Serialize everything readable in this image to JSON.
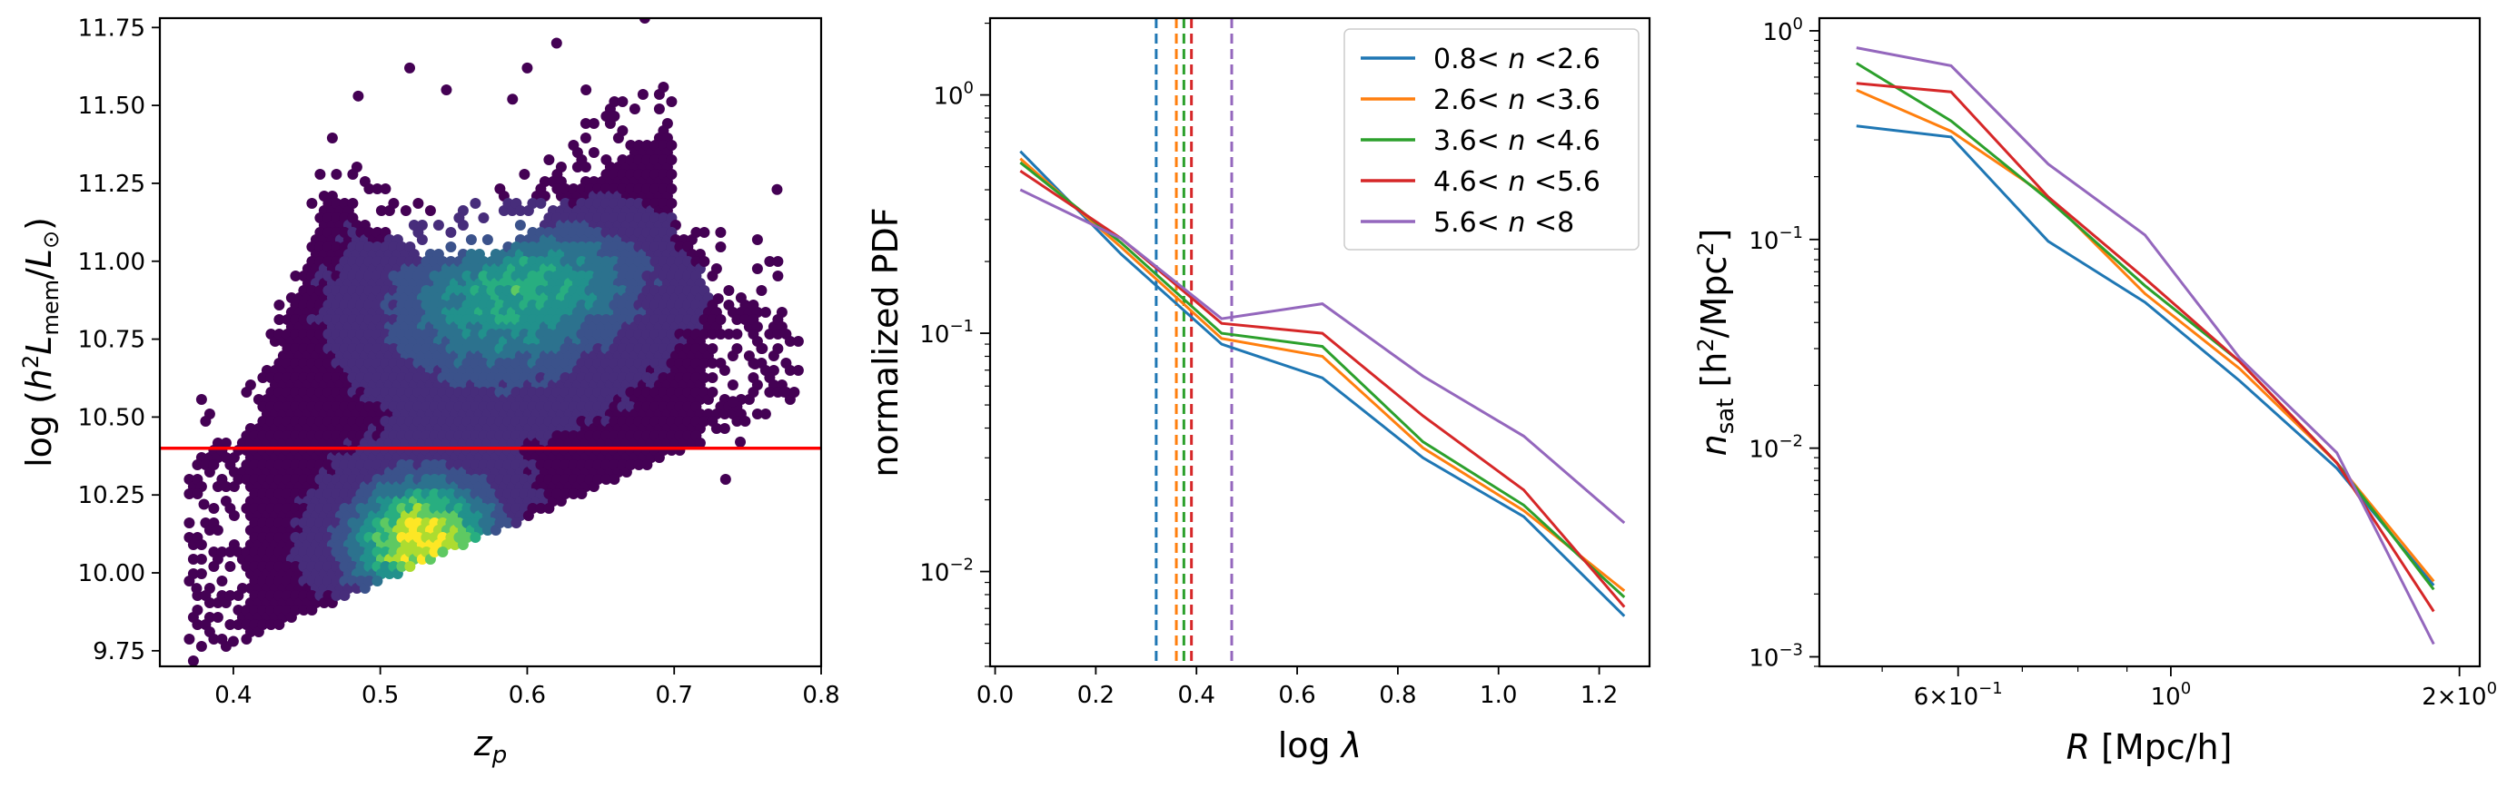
{
  "chart_data": [
    {
      "type": "scatter",
      "xlabel": "z_p",
      "ylabel": "log (h^2 L_mem / L_⊙)",
      "xlim": [
        0.35,
        0.8
      ],
      "ylim": [
        9.7,
        11.78
      ],
      "xticks": [
        0.4,
        0.5,
        0.6,
        0.7,
        0.8
      ],
      "xtick_labels": [
        "0.4",
        "0.5",
        "0.6",
        "0.7",
        "0.8"
      ],
      "yticks": [
        9.75,
        10.0,
        10.25,
        10.5,
        10.75,
        11.0,
        11.25,
        11.5,
        11.75
      ],
      "ytick_labels": [
        "9.75",
        "10.00",
        "10.25",
        "10.50",
        "10.75",
        "11.00",
        "11.25",
        "11.50",
        "11.75"
      ],
      "hline": {
        "y": 10.4,
        "color": "#ff0000"
      },
      "colormap": "viridis",
      "density_peak": {
        "x": 0.53,
        "y": 10.1
      }
    },
    {
      "type": "line",
      "xlabel": "log λ",
      "ylabel": "normalized PDF",
      "xlim": [
        -0.01,
        1.3
      ],
      "ylim": [
        0.004,
        2.1
      ],
      "yscale": "log",
      "xticks": [
        0.0,
        0.2,
        0.4,
        0.6,
        0.8,
        1.0,
        1.2
      ],
      "xtick_labels": [
        "0.0",
        "0.2",
        "0.4",
        "0.6",
        "0.8",
        "1.0",
        "1.2"
      ],
      "yticks": [
        0.01,
        0.1,
        1
      ],
      "ytick_labels": [
        "10^-2",
        "10^-1",
        "10^0"
      ],
      "legend_loc": "upper right",
      "x": [
        0.05,
        0.25,
        0.45,
        0.65,
        0.85,
        1.05,
        1.25
      ],
      "series": [
        {
          "name": "0.8< n <2.6",
          "color": "#1f77b4",
          "values": [
            0.58,
            0.215,
            0.09,
            0.065,
            0.03,
            0.017,
            0.0065
          ],
          "vline": 0.32
        },
        {
          "name": "2.6< n <3.6",
          "color": "#ff7f0e",
          "values": [
            0.54,
            0.23,
            0.095,
            0.08,
            0.033,
            0.018,
            0.0083
          ],
          "vline": 0.36
        },
        {
          "name": "3.6< n <4.6",
          "color": "#2ca02c",
          "values": [
            0.52,
            0.24,
            0.1,
            0.088,
            0.035,
            0.019,
            0.0078
          ],
          "vline": 0.375
        },
        {
          "name": "4.6< n <5.6",
          "color": "#d62728",
          "values": [
            0.48,
            0.25,
            0.11,
            0.1,
            0.045,
            0.022,
            0.0071
          ],
          "vline": 0.39
        },
        {
          "name": "5.6< n <8",
          "color": "#9467bd",
          "values": [
            0.4,
            0.25,
            0.115,
            0.133,
            0.066,
            0.037,
            0.016
          ],
          "vline": 0.47
        }
      ]
    },
    {
      "type": "line",
      "xlabel": "R [Mpc/h]",
      "ylabel": "n_sat [h^2/Mpc^2]",
      "xscale": "log",
      "yscale": "log",
      "xlim": [
        0.43,
        2.1
      ],
      "ylim": [
        0.0009,
        1.15
      ],
      "xticks": [
        0.6,
        1.0,
        2.0
      ],
      "xtick_labels": [
        "6×10^-1",
        "10^0",
        "2×10^0"
      ],
      "yticks": [
        0.001,
        0.01,
        0.1,
        1
      ],
      "ytick_labels": [
        "10^-3",
        "10^-2",
        "10^-1",
        "10^0"
      ],
      "x": [
        0.47,
        0.59,
        0.745,
        0.94,
        1.18,
        1.49,
        1.88
      ],
      "series": [
        {
          "color": "#1f77b4",
          "values": [
            0.35,
            0.31,
            0.098,
            0.05,
            0.021,
            0.008,
            0.0022
          ]
        },
        {
          "color": "#ff7f0e",
          "values": [
            0.52,
            0.33,
            0.16,
            0.055,
            0.024,
            0.0085,
            0.0023
          ]
        },
        {
          "color": "#2ca02c",
          "values": [
            0.7,
            0.37,
            0.155,
            0.06,
            0.026,
            0.0085,
            0.0021
          ]
        },
        {
          "color": "#d62728",
          "values": [
            0.56,
            0.51,
            0.16,
            0.065,
            0.026,
            0.0085,
            0.00165
          ]
        },
        {
          "color": "#9467bd",
          "values": [
            0.83,
            0.68,
            0.23,
            0.105,
            0.027,
            0.0095,
            0.00115
          ]
        }
      ]
    }
  ]
}
